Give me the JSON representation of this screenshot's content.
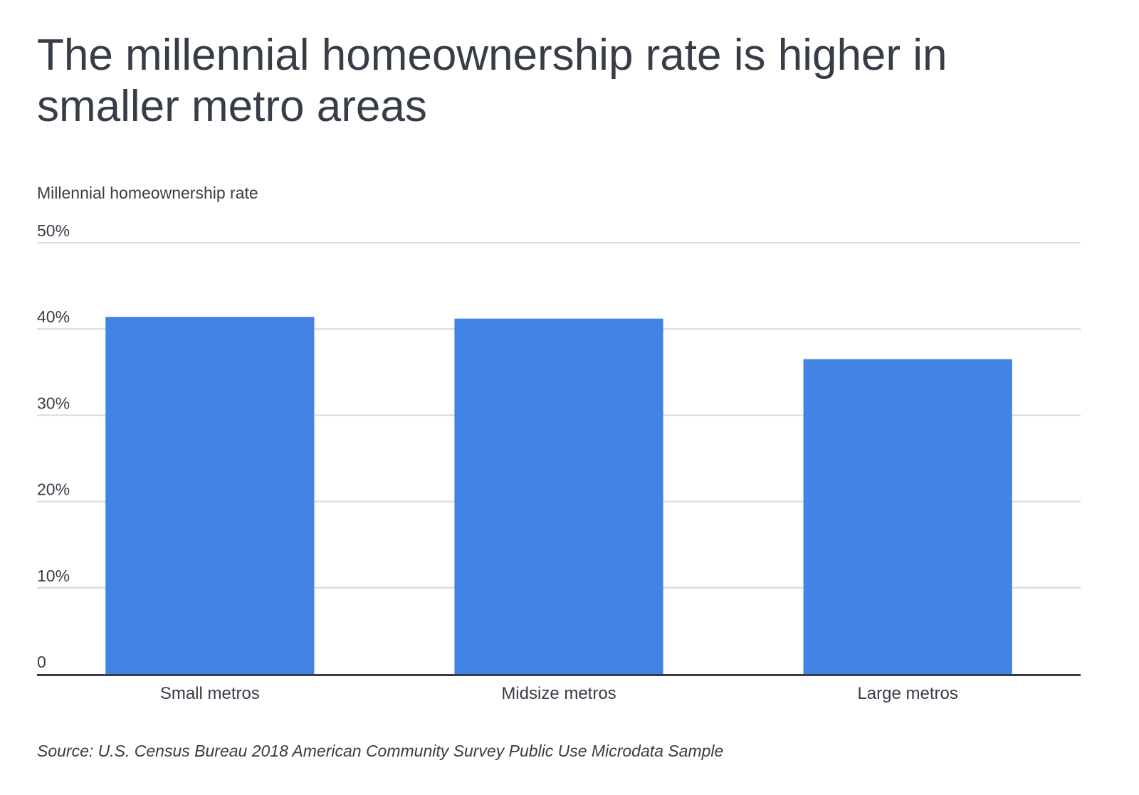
{
  "chart_data": {
    "type": "bar",
    "title": "The millennial homeownership rate is higher in smaller metro areas",
    "ylabel": "Millennial homeownership rate",
    "xlabel": "",
    "categories": [
      "Small metros",
      "Midsize metros",
      "Large metros"
    ],
    "values": [
      41.4,
      41.2,
      36.5
    ],
    "ylim": [
      0,
      50
    ],
    "yticks": [
      0,
      10,
      20,
      30,
      40,
      50
    ],
    "ytick_labels": [
      "0",
      "10%",
      "20%",
      "30%",
      "40%",
      "50%"
    ],
    "grid": true,
    "bar_color": "#4383e4",
    "source": "Source: U.S. Census Bureau 2018 American Community Survey Public Use Microdata Sample"
  }
}
